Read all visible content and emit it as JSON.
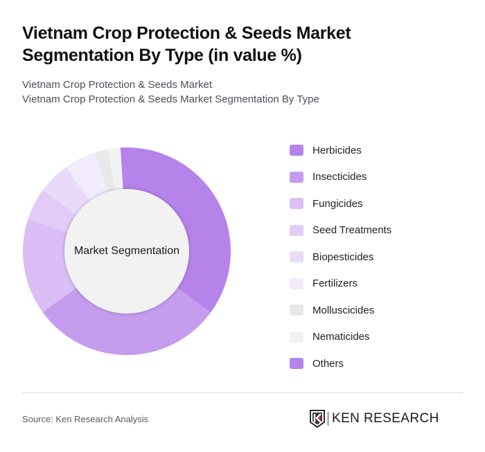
{
  "header": {
    "title": "Vietnam Crop Protection & Seeds Market Segmentation By Type (in value %)",
    "subtitle_line1": "Vietnam Crop Protection & Seeds Market",
    "subtitle_line2": "Vietnam Crop Protection & Seeds Market Segmentation By Type"
  },
  "chart": {
    "center_label": "Market Segmentation"
  },
  "legend": [
    {
      "label": "Herbicides",
      "color": "#B583EA"
    },
    {
      "label": "Insecticides",
      "color": "#C59CEE"
    },
    {
      "label": "Fungicides",
      "color": "#DABEF5"
    },
    {
      "label": "Seed Treatments",
      "color": "#E2CCF7"
    },
    {
      "label": "Biopesticides",
      "color": "#EADAF9"
    },
    {
      "label": "Fertilizers",
      "color": "#F2EBFC"
    },
    {
      "label": "Molluscicides",
      "color": "#E8E8E8"
    },
    {
      "label": "Nematicides",
      "color": "#F2F2F2"
    },
    {
      "label": "Others",
      "color": "#B583EA"
    }
  ],
  "footer": {
    "source": "Source: Ken Research Analysis",
    "logo_text": "KEN RESEARCH"
  },
  "chart_data": {
    "type": "pie",
    "variant": "donut",
    "title": "Vietnam Crop Protection & Seeds Market Segmentation By Type (in value %)",
    "center_label": "Market Segmentation",
    "categories": [
      "Herbicides",
      "Insecticides",
      "Fungicides",
      "Seed Treatments",
      "Biopesticides",
      "Fertilizers",
      "Molluscicides",
      "Nematicides",
      "Others"
    ],
    "values": [
      36,
      30,
      15,
      5,
      5,
      5,
      2,
      2,
      0
    ],
    "colors": [
      "#B583EA",
      "#C59CEE",
      "#DABEF5",
      "#E2CCF7",
      "#EADAF9",
      "#F2EBFC",
      "#E8E8E8",
      "#F2F2F2",
      "#B583EA"
    ],
    "unit": "%",
    "legend_position": "right"
  }
}
